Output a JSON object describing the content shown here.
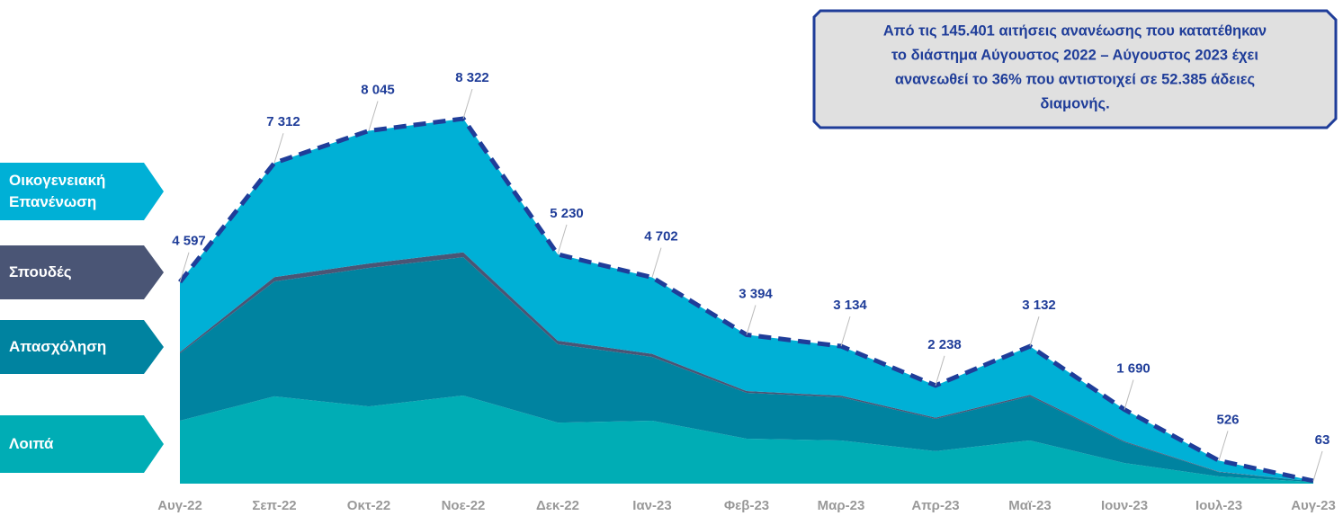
{
  "chart_data": {
    "type": "stacked_area",
    "categories": [
      "Αυγ-22",
      "Σεπ-22",
      "Οκτ-22",
      "Νοε-22",
      "Δεκ-22",
      "Ιαν-23",
      "Φεβ-23",
      "Μαρ-23",
      "Απρ-23",
      "Μαϊ-23",
      "Ιουν-23",
      "Ιουλ-23",
      "Αυγ-23"
    ],
    "series": [
      {
        "name": "Λοιπά",
        "color": "#00adb5",
        "values": [
          1435,
          1990,
          1760,
          2010,
          1390,
          1435,
          1025,
          985,
          740,
          985,
          470,
          165,
          35
        ]
      },
      {
        "name": "Απασχόληση",
        "color": "#0083a0",
        "values": [
          1535,
          2620,
          3160,
          3155,
          1790,
          1455,
          1045,
          985,
          735,
          1005,
          475,
          100,
          15
        ]
      },
      {
        "name": "Σπουδές",
        "color": "#4a5575",
        "values": [
          30,
          100,
          100,
          110,
          80,
          70,
          40,
          35,
          30,
          35,
          20,
          10,
          1
        ]
      },
      {
        "name": "Οικογενειακή Επανένωση",
        "color": "#00b0d6",
        "values": [
          1597,
          2602,
          3025,
          3047,
          1970,
          1742,
          1284,
          1129,
          733,
          1107,
          725,
          251,
          12
        ]
      }
    ],
    "totals": [
      4597,
      7312,
      8045,
      8322,
      5230,
      4702,
      3394,
      3134,
      2238,
      3132,
      1690,
      526,
      63
    ],
    "total_labels": [
      "4 597",
      "7 312",
      "8 045",
      "8 322",
      "5 230",
      "4 702",
      "3 394",
      "3 134",
      "2 238",
      "3 132",
      "1 690",
      "526",
      "63"
    ],
    "totals_color": "#1f3d99",
    "annotation": [
      "Από τις 145.401 αιτήσεις ανανέωσης που κατατέθηκαν",
      "το διάστημα Αύγουστος 2022 – Αύγουστος 2023 έχει",
      "ανανεωθεί το 36% που αντιστοιχεί σε 52.385 άδειες",
      "διαμονής."
    ]
  }
}
